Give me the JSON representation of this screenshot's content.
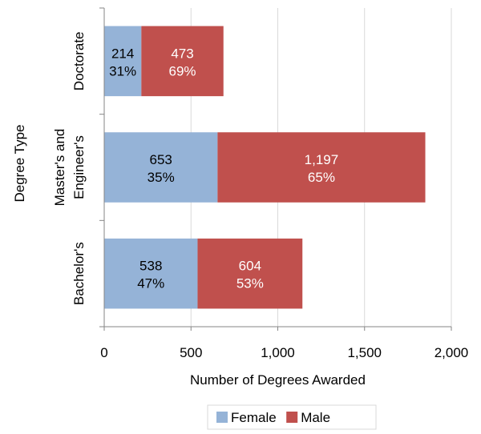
{
  "chart_data": {
    "type": "bar",
    "orientation": "horizontal",
    "stacked": true,
    "categories": [
      [
        "Doctorate"
      ],
      [
        "Master's and",
        "Engineer's"
      ],
      [
        "Bachelor's"
      ]
    ],
    "series": [
      {
        "name": "Female",
        "color": "#95b3d7",
        "label_color": "#000000",
        "values": [
          214,
          653,
          538
        ],
        "value_labels": [
          "214",
          "653",
          "538"
        ],
        "percent_labels": [
          "31%",
          "35%",
          "47%"
        ]
      },
      {
        "name": "Male",
        "color": "#c0504d",
        "label_color": "#ffffff",
        "values": [
          473,
          1197,
          604
        ],
        "value_labels": [
          "473",
          "1,197",
          "604"
        ],
        "percent_labels": [
          "69%",
          "65%",
          "53%"
        ]
      }
    ],
    "xlabel": "Number of Degrees Awarded",
    "ylabel": "Degree Type",
    "xlim": [
      0,
      2000
    ],
    "xticks": [
      0,
      500,
      1000,
      1500,
      2000
    ],
    "xtick_labels": [
      "0",
      "500",
      "1,000",
      "1,500",
      "2,000"
    ],
    "grid": "vertical",
    "grid_color": "#d9d9d9",
    "legend_position": "bottom"
  }
}
